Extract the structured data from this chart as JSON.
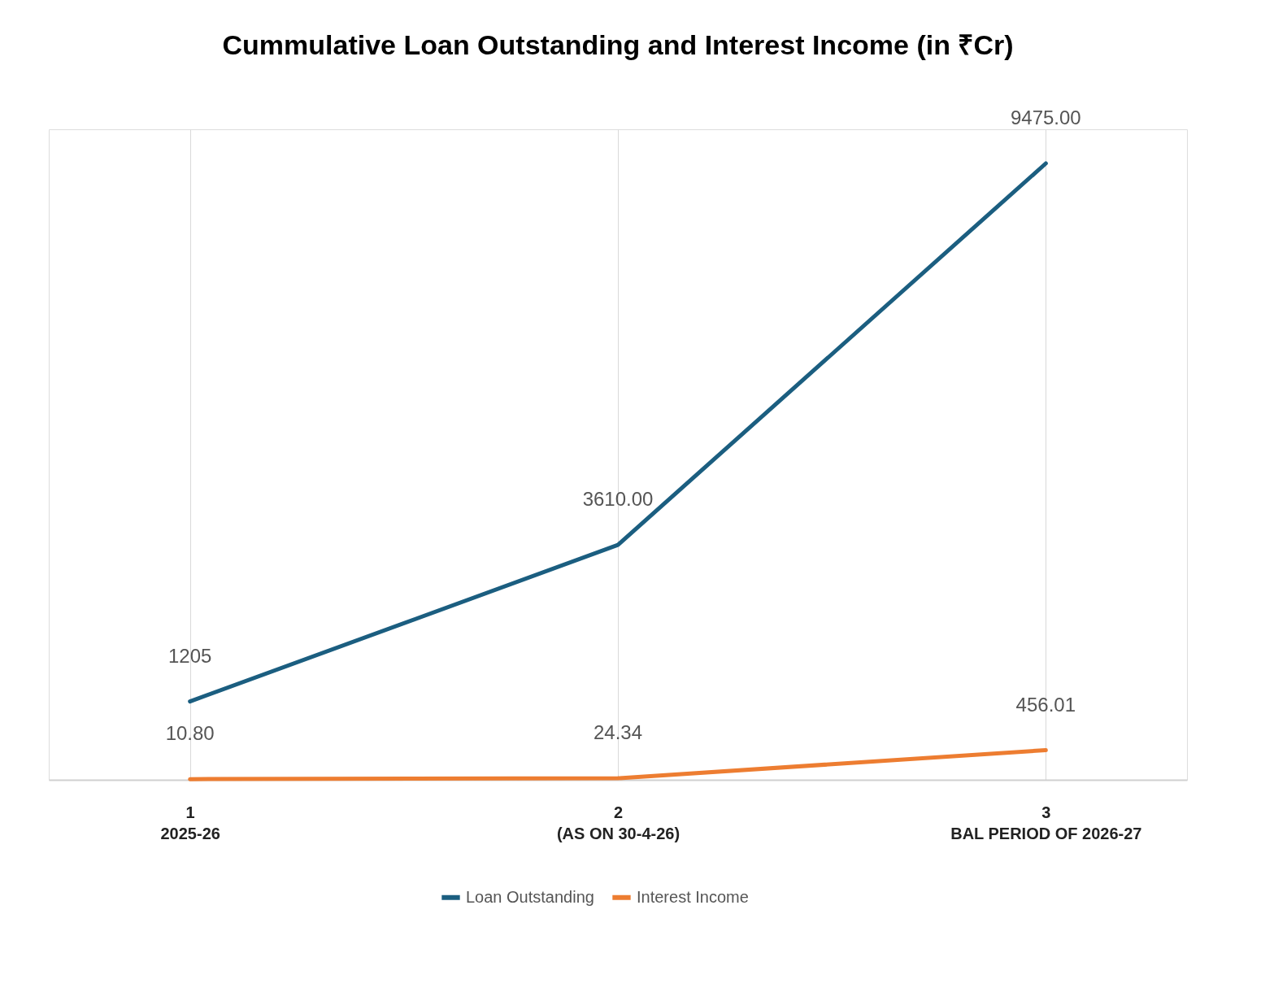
{
  "chart_data": {
    "type": "line",
    "title": "Cummulative Loan Outstanding and Interest Income (in ₹Cr)",
    "categories": [
      "1\n2025-26",
      "2\n(AS ON 30-4-26)",
      "3\nBAL PERIOD OF 2026-27"
    ],
    "series": [
      {
        "name": "Loan Outstanding",
        "color": "#1b5e80",
        "values": [
          1205,
          3610.0,
          9475.0
        ],
        "value_labels": [
          "1205",
          "3610.00",
          "9475.00"
        ]
      },
      {
        "name": "Interest Income",
        "color": "#ed7d31",
        "values": [
          10.8,
          24.34,
          456.01
        ],
        "value_labels": [
          "10.80",
          "24.34",
          "456.01"
        ]
      }
    ],
    "grid": "x",
    "legend": "bottom",
    "marker": "none",
    "line_style": "solid"
  }
}
